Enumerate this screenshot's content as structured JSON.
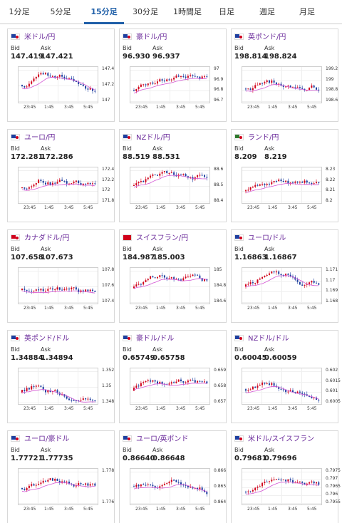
{
  "tabs": [
    "1分足",
    "5分足",
    "15分足",
    "30分足",
    "1時間足",
    "日足",
    "週足",
    "月足"
  ],
  "active_tab": 2,
  "labels": {
    "bid": "Bid",
    "ask": "Ask"
  },
  "x_ticks": [
    "23:45",
    "1:45",
    "3:45",
    "5:45"
  ],
  "colors": {
    "up": "#d0021b",
    "down": "#1d3fa0",
    "ma": "#d455d4",
    "link": "#6a2a9a",
    "active_tab": "#1f5fa8"
  },
  "cards": [
    {
      "pair": "米ドル/円",
      "flag": "us",
      "bid": "147.419",
      "ask": "147.421",
      "y_ticks": [
        "147.4",
        "147.2",
        "147"
      ]
    },
    {
      "pair": "豪ドル/円",
      "flag": "au",
      "bid": "96.930",
      "ask": "96.937",
      "y_ticks": [
        "97",
        "96.9",
        "96.8",
        "96.7"
      ]
    },
    {
      "pair": "英ポンド/円",
      "flag": "uk",
      "bid": "198.814",
      "ask": "198.824",
      "y_ticks": [
        "199.2",
        "199",
        "198.8",
        "198.6"
      ]
    },
    {
      "pair": "ユーロ/円",
      "flag": "eu",
      "bid": "172.281",
      "ask": "172.286",
      "y_ticks": [
        "172.4",
        "172.2",
        "172",
        "171.8"
      ]
    },
    {
      "pair": "NZドル/円",
      "flag": "nz",
      "bid": "88.519",
      "ask": "88.531",
      "y_ticks": [
        "88.6",
        "88.5",
        "88.4"
      ]
    },
    {
      "pair": "ランド/円",
      "flag": "za",
      "bid": "8.209",
      "ask": "8.219",
      "y_ticks": [
        "8.23",
        "8.22",
        "8.21",
        "8.2"
      ]
    },
    {
      "pair": "カナダドル/円",
      "flag": "ca",
      "bid": "107.658",
      "ask": "107.673",
      "y_ticks": [
        "107.8",
        "107.6",
        "107.4"
      ]
    },
    {
      "pair": "スイスフラン/円",
      "flag": "ch",
      "bid": "184.987",
      "ask": "185.003",
      "y_ticks": [
        "185",
        "184.8",
        "184.6"
      ]
    },
    {
      "pair": "ユーロ/ドル",
      "flag": "eu",
      "bid": "1.16863",
      "ask": "1.16867",
      "y_ticks": [
        "1.171",
        "1.17",
        "1.169",
        "1.168"
      ]
    },
    {
      "pair": "英ポンド/ドル",
      "flag": "uk",
      "bid": "1.34884",
      "ask": "1.34894",
      "y_ticks": [
        "1.352",
        "1.35",
        "1.348"
      ]
    },
    {
      "pair": "豪ドル/ドル",
      "flag": "au",
      "bid": "0.65749",
      "ask": "0.65758",
      "y_ticks": [
        "0.659",
        "0.658",
        "0.657"
      ]
    },
    {
      "pair": "NZドル/ドル",
      "flag": "nz",
      "bid": "0.60045",
      "ask": "0.60059",
      "y_ticks": [
        "0.602",
        "0.6015",
        "0.601",
        "0.6005"
      ]
    },
    {
      "pair": "ユーロ/豪ドル",
      "flag": "eu",
      "bid": "1.77721",
      "ask": "1.77735",
      "y_ticks": [
        "1.778",
        "1.776"
      ]
    },
    {
      "pair": "ユーロ/英ポンド",
      "flag": "eu",
      "bid": "0.86640",
      "ask": "0.86648",
      "y_ticks": [
        "0.866",
        "0.865",
        "0.864"
      ]
    },
    {
      "pair": "米ドル/スイスフラン",
      "flag": "us",
      "bid": "0.79681",
      "ask": "0.79696",
      "y_ticks": [
        "0.7975",
        "0.797",
        "0.7965",
        "0.796",
        "0.7955"
      ]
    }
  ]
}
